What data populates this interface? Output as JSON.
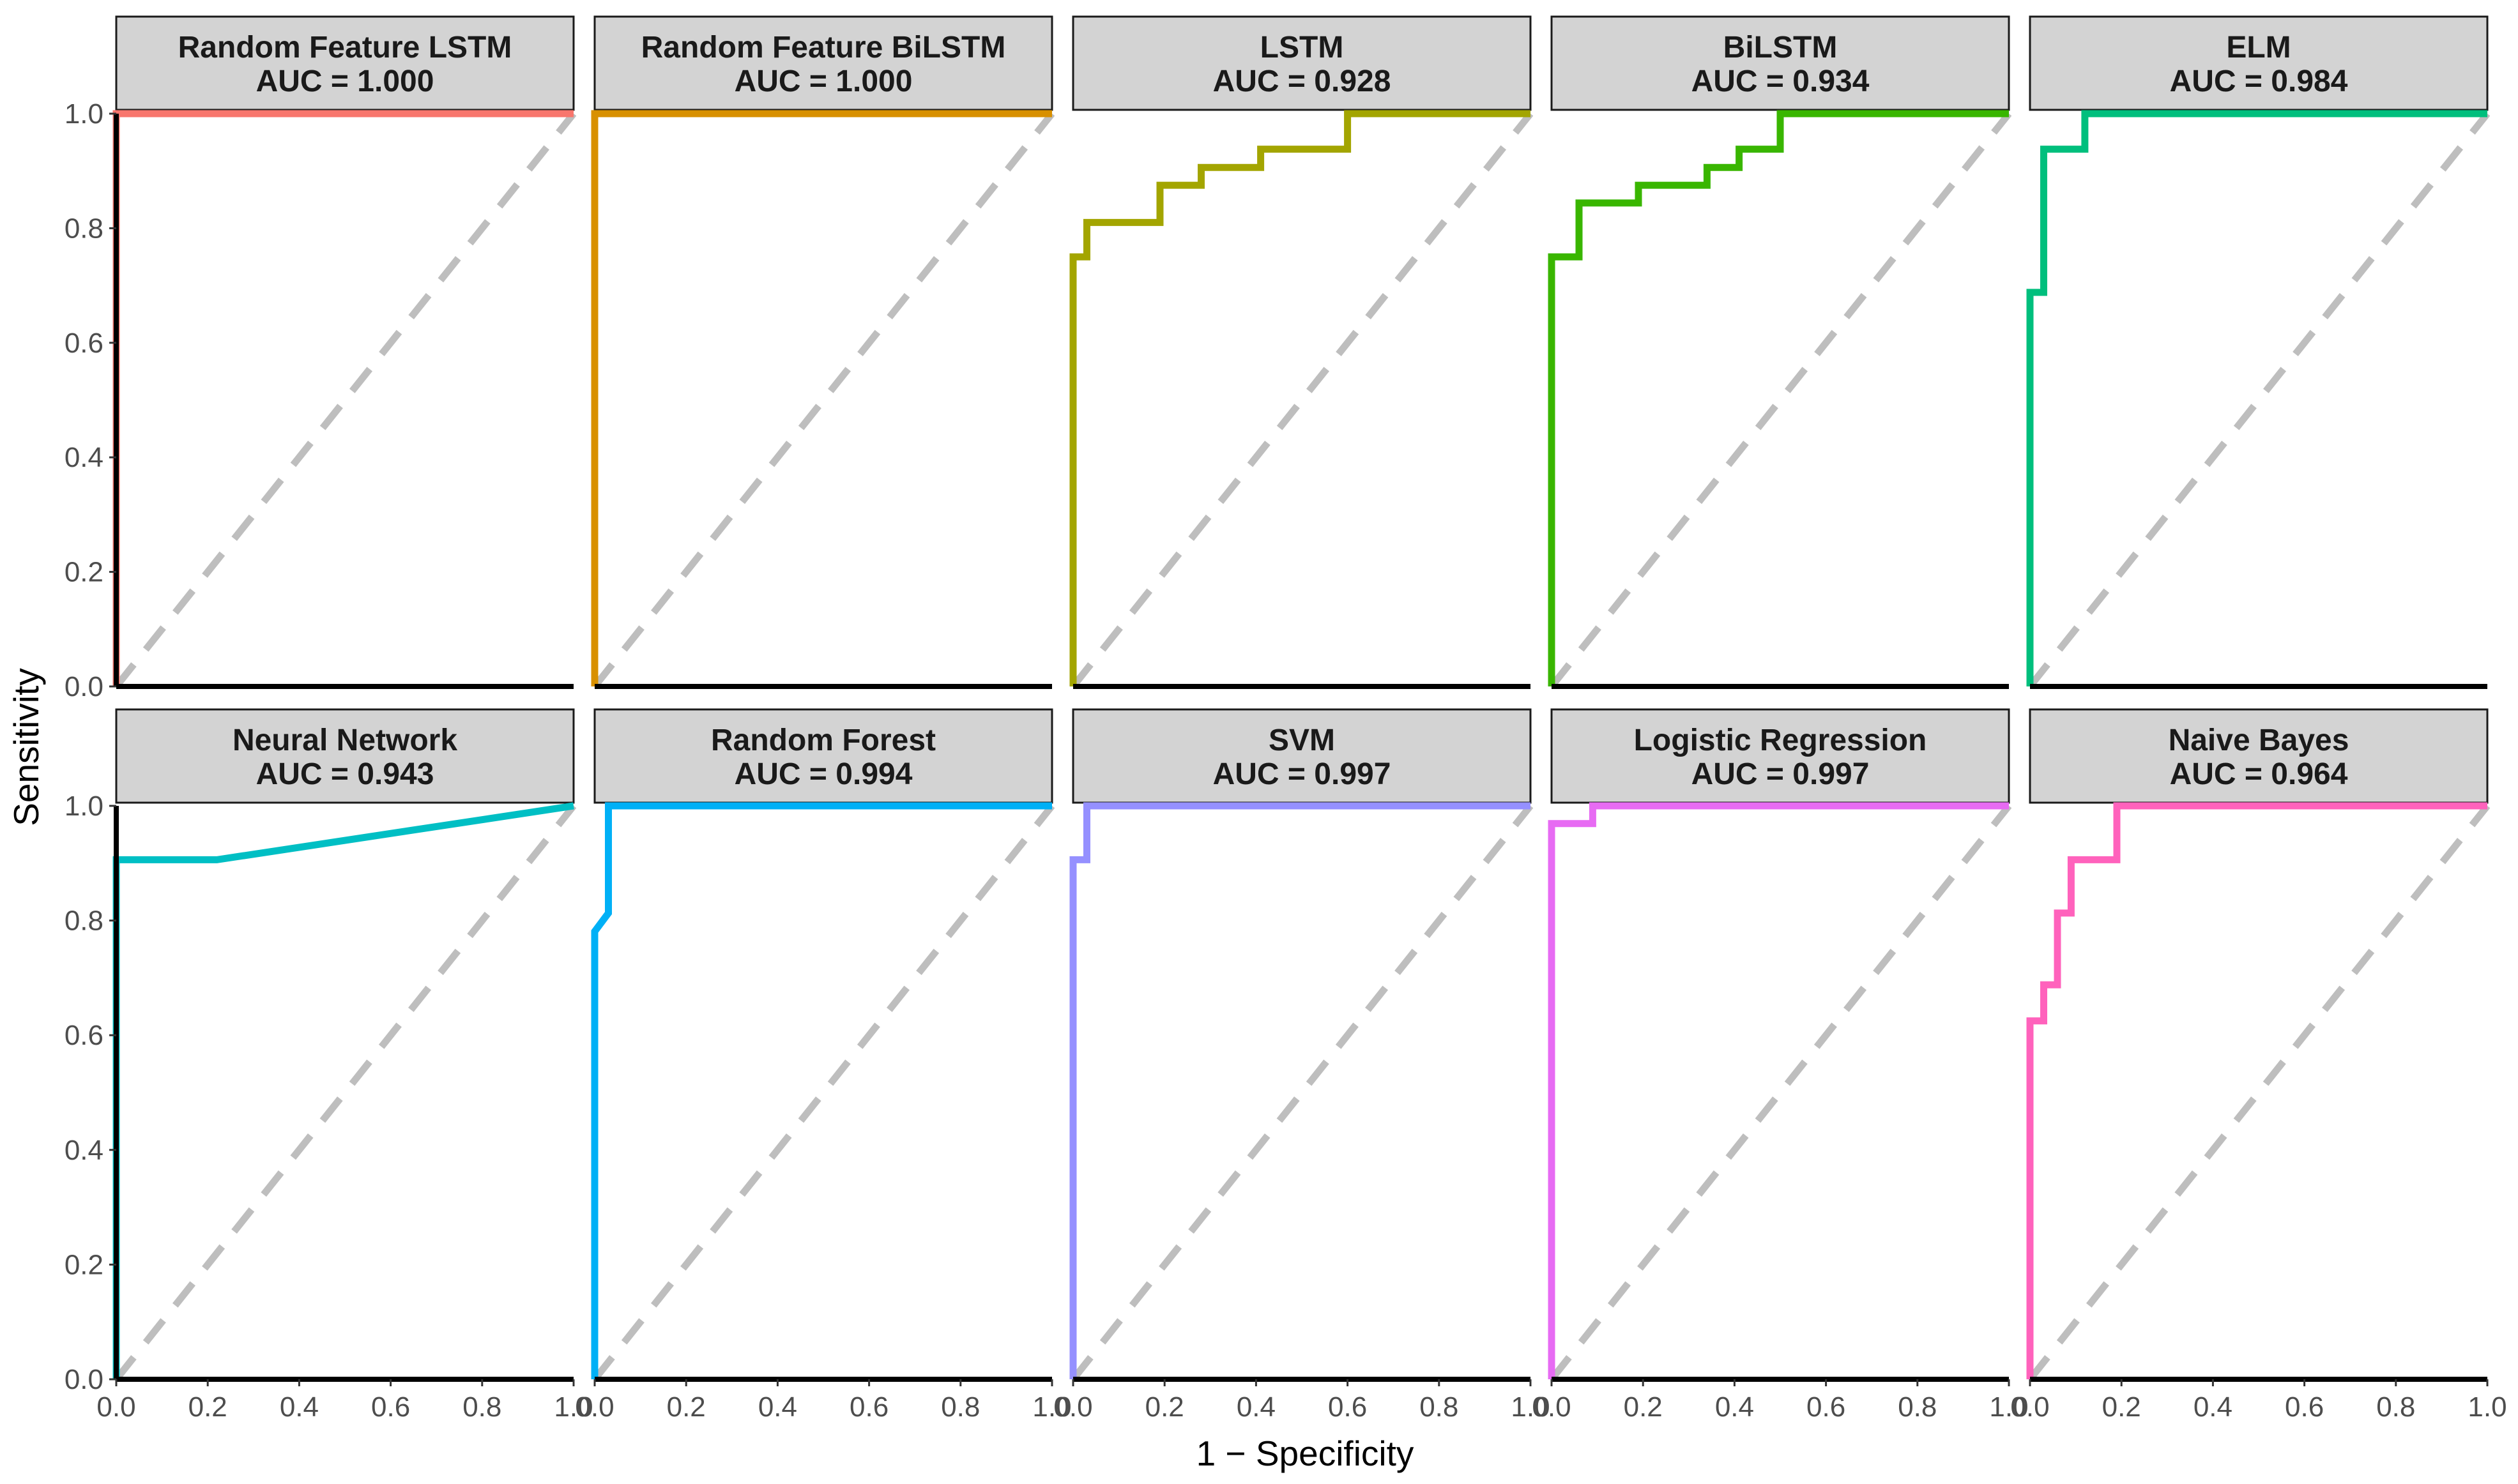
{
  "chart_data": {
    "type": "line",
    "xlabel": "1 − Specificity",
    "ylabel": "Sensitivity",
    "xlim": [
      0,
      1
    ],
    "ylim": [
      0,
      1
    ],
    "x_ticks": [
      "0.0",
      "0.2",
      "0.4",
      "0.6",
      "0.8",
      "1.0"
    ],
    "y_ticks": [
      "0.0",
      "0.2",
      "0.4",
      "0.6",
      "0.8",
      "1.0"
    ],
    "reference_line": "diagonal",
    "legend": "none",
    "panels": [
      {
        "title": "Random Feature LSTM",
        "auc_label": "AUC = 1.000",
        "color": "#F8766D",
        "x": [
          0,
          0,
          1
        ],
        "y": [
          0,
          1,
          1
        ]
      },
      {
        "title": "Random Feature BiLSTM",
        "auc_label": "AUC = 1.000",
        "color": "#D89000",
        "x": [
          0,
          0,
          1
        ],
        "y": [
          0,
          1,
          1
        ]
      },
      {
        "title": "LSTM",
        "auc_label": "AUC = 0.928",
        "color": "#A3A500",
        "x": [
          0,
          0,
          0.03,
          0.03,
          0.19,
          0.19,
          0.28,
          0.28,
          0.41,
          0.41,
          0.6,
          0.6,
          1
        ],
        "y": [
          0,
          0.75,
          0.75,
          0.81,
          0.81,
          0.875,
          0.875,
          0.906,
          0.906,
          0.938,
          0.938,
          1,
          1
        ]
      },
      {
        "title": "BiLSTM",
        "auc_label": "AUC = 0.934",
        "color": "#39B600",
        "x": [
          0,
          0,
          0.06,
          0.06,
          0.19,
          0.19,
          0.34,
          0.34,
          0.41,
          0.41,
          0.5,
          0.5,
          1
        ],
        "y": [
          0,
          0.75,
          0.75,
          0.844,
          0.844,
          0.875,
          0.875,
          0.906,
          0.906,
          0.938,
          0.938,
          1,
          1
        ]
      },
      {
        "title": "ELM",
        "auc_label": "AUC = 0.984",
        "color": "#00BF7D",
        "x": [
          0,
          0,
          0.03,
          0.03,
          0.12,
          0.12,
          1
        ],
        "y": [
          0,
          0.688,
          0.688,
          0.938,
          0.938,
          1,
          1
        ]
      },
      {
        "title": "Neural Network",
        "auc_label": "AUC = 0.943",
        "color": "#00BFC4",
        "x": [
          0,
          0,
          0.22,
          1
        ],
        "y": [
          0,
          0.906,
          0.906,
          1
        ]
      },
      {
        "title": "Random Forest",
        "auc_label": "AUC = 0.994",
        "color": "#00B0F6",
        "x": [
          0,
          0,
          0.03,
          0.03,
          1
        ],
        "y": [
          0,
          0.781,
          0.813,
          1,
          1
        ]
      },
      {
        "title": "SVM",
        "auc_label": "AUC = 0.997",
        "color": "#9590FF",
        "x": [
          0,
          0,
          0.03,
          0.03,
          1
        ],
        "y": [
          0,
          0.906,
          0.906,
          1,
          1
        ]
      },
      {
        "title": "Logistic Regression",
        "auc_label": "AUC = 0.997",
        "color": "#E76BF3",
        "x": [
          0,
          0,
          0.09,
          0.09,
          1
        ],
        "y": [
          0,
          0.969,
          0.969,
          1,
          1
        ]
      },
      {
        "title": "Naive Bayes",
        "auc_label": "AUC = 0.964",
        "color": "#FF62BC",
        "x": [
          0,
          0,
          0.03,
          0.03,
          0.06,
          0.06,
          0.09,
          0.09,
          0.19,
          0.19,
          1
        ],
        "y": [
          0,
          0.625,
          0.625,
          0.688,
          0.688,
          0.813,
          0.813,
          0.906,
          0.906,
          1,
          1
        ]
      }
    ]
  }
}
